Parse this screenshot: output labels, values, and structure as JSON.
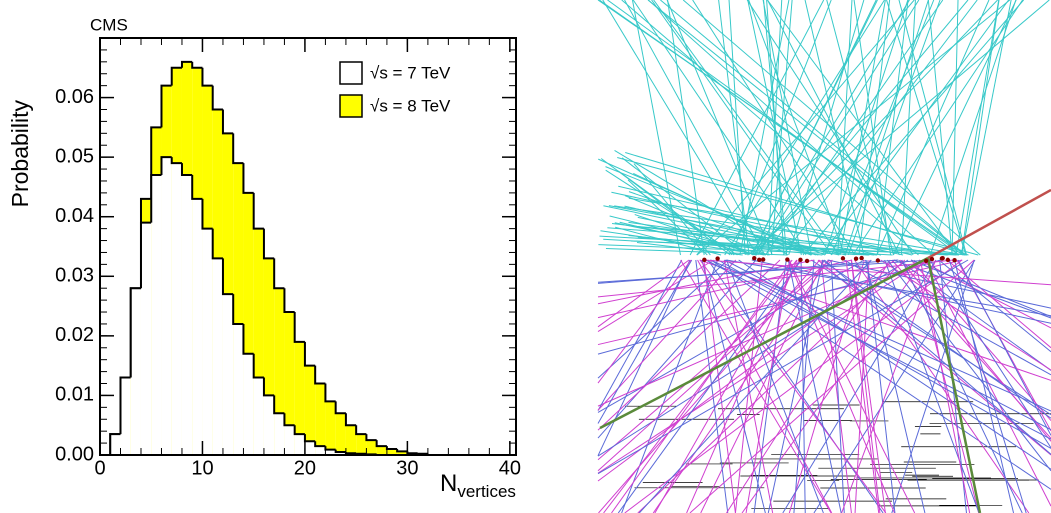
{
  "chart_data": {
    "type": "histogram",
    "title": "CMS",
    "y_label": "Probability",
    "x_label": "N",
    "x_label_sub": "vertices",
    "bins": [
      0,
      1,
      2,
      3,
      4,
      5,
      6,
      7,
      8,
      9,
      10,
      11,
      12,
      13,
      14,
      15,
      16,
      17,
      18,
      19,
      20,
      21,
      22,
      23,
      24,
      25,
      26,
      27,
      28,
      29,
      30,
      31,
      32,
      33
    ],
    "series": [
      {
        "name": "√s = 8 TeV",
        "color": "#ffff00",
        "values": [
          0,
          0.0035,
          0.013,
          0.028,
          0.043,
          0.055,
          0.062,
          0.065,
          0.066,
          0.065,
          0.062,
          0.058,
          0.054,
          0.049,
          0.044,
          0.038,
          0.033,
          0.028,
          0.024,
          0.019,
          0.015,
          0.012,
          0.009,
          0.007,
          0.005,
          0.0035,
          0.0025,
          0.0015,
          0.001,
          0.0006,
          0.0003,
          0.0002,
          0
        ]
      },
      {
        "name": "√s = 7 TeV",
        "color": "#ffffff",
        "values": [
          0,
          0.0035,
          0.013,
          0.028,
          0.039,
          0.047,
          0.05,
          0.049,
          0.047,
          0.043,
          0.038,
          0.033,
          0.027,
          0.022,
          0.017,
          0.013,
          0.01,
          0.007,
          0.005,
          0.0035,
          0.0023,
          0.0015,
          0.0009,
          0.0005,
          0.0003,
          0.0002,
          0.0001,
          0,
          0,
          0,
          0,
          0,
          0
        ]
      }
    ],
    "xlim": [
      0,
      40.6
    ],
    "ylim": [
      0,
      0.07
    ],
    "xticks": [
      0,
      10,
      20,
      30,
      40
    ],
    "yticks": [
      {
        "value": 0,
        "label": "0.00"
      },
      0.01,
      0.02,
      0.03,
      0.04,
      0.05,
      0.06
    ]
  }
}
